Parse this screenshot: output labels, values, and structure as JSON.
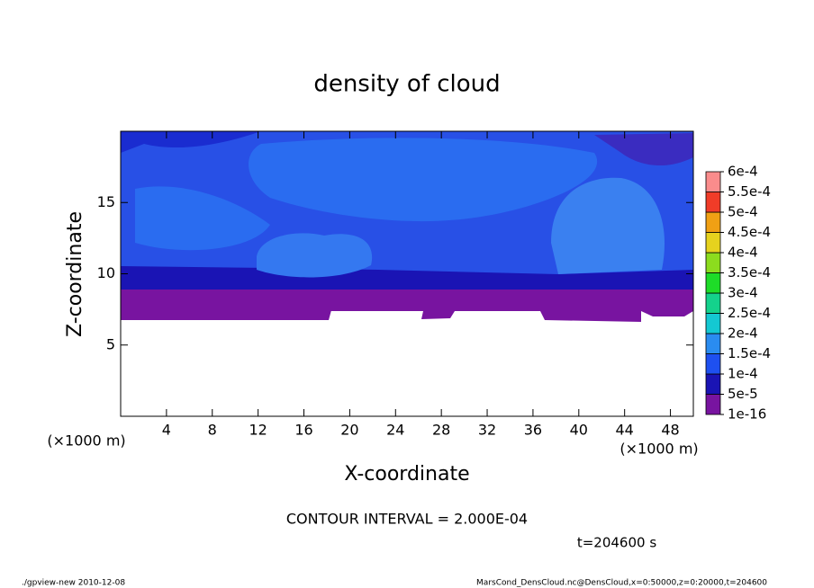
{
  "chart_data": {
    "type": "contour",
    "title": "density of cloud",
    "xlabel": "X-coordinate",
    "ylabel": "Z-coordinate",
    "xunit": "(×1000 m)",
    "yunit": "(×1000 m)",
    "xlim": [
      0,
      50
    ],
    "ylim": [
      0,
      20
    ],
    "xticks": [
      4,
      8,
      12,
      16,
      20,
      24,
      28,
      32,
      36,
      40,
      44,
      48
    ],
    "yticks": [
      5,
      10,
      15
    ],
    "colorbar_ticks": [
      {
        "value": 1e-16,
        "label": "1e-16"
      },
      {
        "value": 5e-05,
        "label": "5e-5"
      },
      {
        "value": 0.0001,
        "label": "1e-4"
      },
      {
        "value": 0.00015,
        "label": "1.5e-4"
      },
      {
        "value": 0.0002,
        "label": "2e-4"
      },
      {
        "value": 0.00025,
        "label": "2.5e-4"
      },
      {
        "value": 0.0003,
        "label": "3e-4"
      },
      {
        "value": 0.00035,
        "label": "3.5e-4"
      },
      {
        "value": 0.0004,
        "label": "4e-4"
      },
      {
        "value": 0.00045,
        "label": "4.5e-4"
      },
      {
        "value": 0.0005,
        "label": "5e-4"
      },
      {
        "value": 0.00055,
        "label": "5.5e-4"
      },
      {
        "value": 0.0006,
        "label": "6e-4"
      }
    ],
    "colorbar_colors": [
      "#7814a0",
      "#1a14b4",
      "#1e50f0",
      "#2a8cf0",
      "#14c8d2",
      "#14d28c",
      "#1edc28",
      "#8cdc1e",
      "#e6d21e",
      "#f0a014",
      "#f03c28",
      "#fa8c8c"
    ],
    "contour_interval": "CONTOUR INTERVAL = 2.000E-04",
    "time_label": "t=204600 s",
    "footer_left": "./gpview-new  2010-12-08",
    "footer_right": "MarsCond_DensCloud.nc@DensCloud,x=0:50000,z=0:20000,t=204600"
  }
}
